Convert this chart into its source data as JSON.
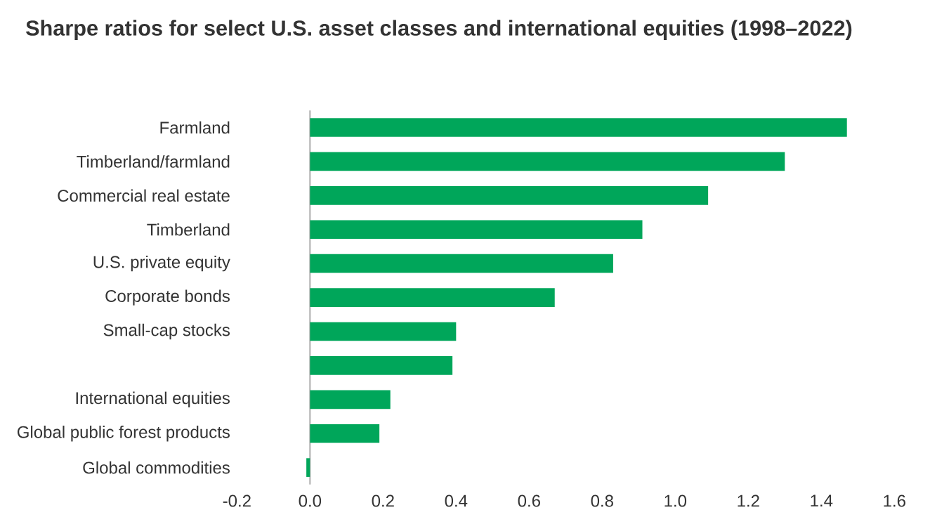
{
  "chart_data": {
    "type": "bar",
    "orientation": "horizontal",
    "title": "Sharpe ratios for select U.S. asset classes and international equities (1998–2022)",
    "categories": [
      "Farmland",
      "Timberland/farmland",
      "Commercial real estate",
      "Timberland",
      "U.S. private equity",
      "Corporate bonds",
      "Small-cap stocks",
      null,
      "International equities",
      "Global public forest products",
      "Global commodities"
    ],
    "values": [
      1.47,
      1.3,
      1.09,
      0.91,
      0.83,
      0.67,
      0.4,
      0.39,
      0.22,
      0.19,
      -0.01
    ],
    "color": "#00a65a",
    "xlim": [
      -0.2,
      1.6
    ],
    "xticks": [
      {
        "value": -0.2,
        "label": "-0.2"
      },
      {
        "value": 0,
        "label": "0.0"
      },
      {
        "value": 0.2,
        "label": "0.2"
      },
      {
        "value": 0.4,
        "label": "0.4"
      },
      {
        "value": 0.6,
        "label": "0.6"
      },
      {
        "value": 0.8,
        "label": "0.8"
      },
      {
        "value": 1.0,
        "label": "1.0"
      },
      {
        "value": 1.2,
        "label": "1.2"
      },
      {
        "value": 1.4,
        "label": "1.4"
      },
      {
        "value": 1.6,
        "label": "1.6"
      }
    ]
  }
}
